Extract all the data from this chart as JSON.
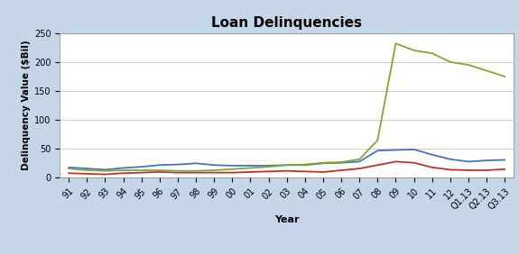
{
  "title": "Loan Delinquencies",
  "xlabel": "Year",
  "ylabel": "Delinquency Value ($Bil)",
  "background_color": "#c5d6e8",
  "plot_bg_color": "#ffffff",
  "xlabels": [
    "91",
    "92",
    "93",
    "94",
    "95",
    "96",
    "97",
    "98",
    "99",
    "00",
    "01",
    "02",
    "03",
    "04",
    "05",
    "06",
    "07",
    "08",
    "09",
    "10",
    "11",
    "12",
    "Q1.13",
    "Q2.13",
    "Q3.13"
  ],
  "consumer_loans": [
    18,
    16,
    14,
    17,
    19,
    22,
    23,
    25,
    22,
    21,
    21,
    21,
    22,
    22,
    25,
    26,
    28,
    47,
    48,
    49,
    40,
    32,
    28,
    30,
    31
  ],
  "credit_cards": [
    8,
    7,
    6,
    8,
    9,
    10,
    9,
    9,
    9,
    9,
    10,
    11,
    12,
    11,
    10,
    13,
    16,
    22,
    28,
    26,
    18,
    14,
    13,
    13,
    15
  ],
  "real_estate": [
    16,
    13,
    12,
    13,
    13,
    13,
    12,
    12,
    13,
    15,
    17,
    19,
    22,
    23,
    26,
    27,
    32,
    65,
    232,
    220,
    215,
    200,
    195,
    185,
    175
  ],
  "consumer_color": "#4472c4",
  "credit_color": "#c0312a",
  "realestate_color": "#80a832",
  "ylim": [
    0,
    250
  ],
  "yticks": [
    0,
    50,
    100,
    150,
    200,
    250
  ],
  "title_fontsize": 11,
  "axis_label_fontsize": 8,
  "tick_fontsize": 7,
  "legend_fontsize": 7,
  "line_width": 1.3
}
